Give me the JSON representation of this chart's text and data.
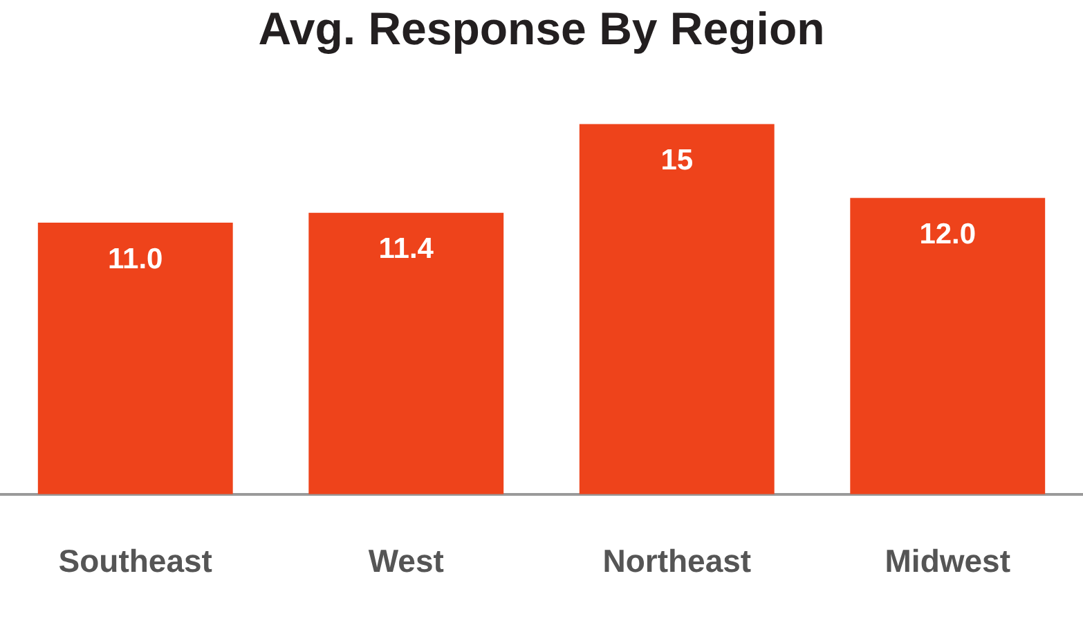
{
  "chart_data": {
    "type": "bar",
    "title": "Avg. Response By Region",
    "categories": [
      "Southeast",
      "West",
      "Northeast",
      "Midwest"
    ],
    "values": [
      11.0,
      11.4,
      15,
      12.0
    ],
    "color": "#ee431b",
    "value_labels": [
      "11.0",
      "11.4",
      "15",
      "12.0"
    ],
    "ylim": [
      0,
      15
    ],
    "tick_labels": "x",
    "grid": false,
    "legend": false
  }
}
